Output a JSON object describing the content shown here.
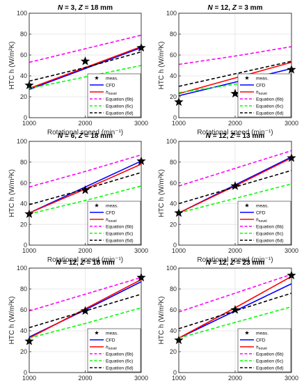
{
  "figure": {
    "colors": {
      "meas": "#000000",
      "cfd": "#0000ff",
      "hnovel": "#ff0000",
      "eq6b": "#ff00ff",
      "eq6c": "#00ff00",
      "eq6d": "#000000"
    }
  },
  "chart_data": [
    {
      "type": "line",
      "title": "N = 3, Z = 18 mm",
      "title_parts": [
        "N",
        " = 3, ",
        "Z",
        " = 18 mm"
      ],
      "xlabel": "Rotational speed (min⁻¹)",
      "ylabel": "HTC h (W/m²K)",
      "xlim": [
        1000,
        3000
      ],
      "ylim": [
        0,
        100
      ],
      "xticks": [
        "1000",
        "2000",
        "3000"
      ],
      "yticks": [
        "0",
        "20",
        "40",
        "60",
        "80",
        "100"
      ],
      "grid": true,
      "legend_position": "bottom-right",
      "legend": [
        "meas.",
        "CFD",
        "hnovel",
        "Equation (6b)",
        "Equation (6c)",
        "Equation (6d)"
      ],
      "x": [
        1000,
        2000,
        3000
      ],
      "series": [
        {
          "name": "meas.",
          "values": [
            31,
            54,
            67
          ]
        },
        {
          "name": "CFD",
          "values": [
            27,
            47,
            67
          ]
        },
        {
          "name": "hnovel",
          "values": [
            28,
            48,
            68
          ]
        },
        {
          "name": "Equation (6b)",
          "values": [
            53,
            66,
            79
          ]
        },
        {
          "name": "Equation (6c)",
          "values": [
            28,
            39,
            50
          ]
        },
        {
          "name": "Equation (6d)",
          "values": [
            35,
            48,
            63
          ]
        }
      ]
    },
    {
      "type": "line",
      "title": "N = 12, Z = 3 mm",
      "title_parts": [
        "N",
        " = 12, ",
        "Z",
        " = 3 mm"
      ],
      "xlabel": "Rotational speed (min⁻¹)",
      "ylabel": "HTC h (W/m²K)",
      "xlim": [
        1000,
        3000
      ],
      "ylim": [
        0,
        100
      ],
      "xticks": [
        "1000",
        "2000",
        "3000"
      ],
      "yticks": [
        "0",
        "20",
        "40",
        "60",
        "80",
        "100"
      ],
      "grid": true,
      "legend_position": "bottom-right",
      "legend": [
        "meas.",
        "CFD",
        "hnovel",
        "Equation (6b)",
        "Equation (6c)",
        "Equation (6d)"
      ],
      "x": [
        1000,
        2000,
        3000
      ],
      "series": [
        {
          "name": "meas.",
          "values": [
            15,
            23,
            46
          ]
        },
        {
          "name": "CFD",
          "values": [
            21,
            34,
            47
          ]
        },
        {
          "name": "hnovel",
          "values": [
            23,
            38,
            53
          ]
        },
        {
          "name": "Equation (6b)",
          "values": [
            51,
            59,
            68
          ]
        },
        {
          "name": "Equation (6c)",
          "values": [
            24,
            32,
            41
          ]
        },
        {
          "name": "Equation (6d)",
          "values": [
            30,
            42,
            54
          ]
        }
      ]
    },
    {
      "type": "line",
      "title": "N = 6, Z = 18 mm",
      "title_parts": [
        "N",
        " = 6, ",
        "Z",
        " = 18 mm"
      ],
      "xlabel": "Rotational speed (min⁻¹)",
      "ylabel": "HTC h (W/m²K)",
      "xlim": [
        1000,
        3000
      ],
      "ylim": [
        0,
        100
      ],
      "xticks": [
        "1000",
        "2000",
        "3000"
      ],
      "yticks": [
        "0",
        "20",
        "40",
        "60",
        "80",
        "100"
      ],
      "grid": true,
      "legend_position": "bottom-right",
      "legend": [
        "meas.",
        "CFD",
        "hnovel",
        "Equation (6b)",
        "Equation (6c)",
        "Equation (6d)"
      ],
      "x": [
        1000,
        2000,
        3000
      ],
      "series": [
        {
          "name": "meas.",
          "values": [
            30,
            53,
            81
          ]
        },
        {
          "name": "CFD",
          "values": [
            31,
            56,
            81
          ]
        },
        {
          "name": "hnovel",
          "values": [
            31,
            54,
            78
          ]
        },
        {
          "name": "Equation (6b)",
          "values": [
            56,
            71,
            87
          ]
        },
        {
          "name": "Equation (6c)",
          "values": [
            30,
            43,
            57
          ]
        },
        {
          "name": "Equation (6d)",
          "values": [
            39,
            54,
            70
          ]
        }
      ]
    },
    {
      "type": "line",
      "title": "N = 12, Z = 13 mm",
      "title_parts": [
        "N",
        " = 12, ",
        "Z",
        " = 13 mm"
      ],
      "xlabel": "Rotational speed (min⁻¹)",
      "ylabel": "HTC h (W/m²K)",
      "xlim": [
        1000,
        3000
      ],
      "ylim": [
        0,
        100
      ],
      "xticks": [
        "1000",
        "2000",
        "3000"
      ],
      "yticks": [
        "0",
        "20",
        "40",
        "60",
        "80",
        "100"
      ],
      "grid": true,
      "legend_position": "bottom-right",
      "legend": [
        "meas.",
        "CFD",
        "hnovel",
        "Equation (6b)",
        "Equation (6c)",
        "Equation (6d)"
      ],
      "x": [
        1000,
        2000,
        3000
      ],
      "series": [
        {
          "name": "meas.",
          "values": [
            31,
            57,
            84
          ]
        },
        {
          "name": "CFD",
          "values": [
            31,
            58,
            85
          ]
        },
        {
          "name": "hnovel",
          "values": [
            31,
            57,
            84
          ]
        },
        {
          "name": "Equation (6b)",
          "values": [
            57,
            74,
            91
          ]
        },
        {
          "name": "Equation (6c)",
          "values": [
            31,
            45,
            59
          ]
        },
        {
          "name": "Equation (6d)",
          "values": [
            40,
            56,
            72
          ]
        }
      ]
    },
    {
      "type": "line",
      "title": "N = 12, Z = 18 mm",
      "title_parts": [
        "N",
        " = 12, ",
        "Z",
        " = 18 mm"
      ],
      "xlabel": "Rotational speed (min⁻¹)",
      "ylabel": "HTC h (W/m²K)",
      "xlim": [
        1000,
        3000
      ],
      "ylim": [
        0,
        100
      ],
      "xticks": [
        "1000",
        "2000",
        "3000"
      ],
      "yticks": [
        "0",
        "20",
        "40",
        "60",
        "80",
        "100"
      ],
      "grid": true,
      "legend_position": "bottom-right",
      "legend": [
        "meas.",
        "CFD",
        "hnovel",
        "Equation (6b)",
        "Equation (6c)",
        "Equation (6d)"
      ],
      "x": [
        1000,
        2000,
        3000
      ],
      "series": [
        {
          "name": "meas.",
          "values": [
            30,
            59,
            91
          ]
        },
        {
          "name": "CFD",
          "values": [
            34,
            60,
            87
          ]
        },
        {
          "name": "hnovel",
          "values": [
            33,
            61,
            89
          ]
        },
        {
          "name": "Equation (6b)",
          "values": [
            59,
            75,
            91
          ]
        },
        {
          "name": "Equation (6c)",
          "values": [
            33,
            47,
            62
          ]
        },
        {
          "name": "Equation (6d)",
          "values": [
            43,
            59,
            75
          ]
        }
      ]
    },
    {
      "type": "line",
      "title": "N = 12, Z = 23 mm",
      "title_parts": [
        "N",
        " = 12, ",
        "Z",
        " = 23 mm"
      ],
      "xlabel": "Rotational speed (min⁻¹)",
      "ylabel": "HTC h (W/m²K)",
      "xlim": [
        1000,
        3000
      ],
      "ylim": [
        0,
        100
      ],
      "xticks": [
        "1000",
        "2000",
        "3000"
      ],
      "yticks": [
        "0",
        "20",
        "40",
        "60",
        "80",
        "100"
      ],
      "grid": true,
      "legend_position": "bottom-right",
      "legend": [
        "meas.",
        "CFD",
        "hnovel",
        "Equation (6b)",
        "Equation (6c)",
        "Equation (6d)"
      ],
      "x": [
        1000,
        2000,
        3000
      ],
      "series": [
        {
          "name": "meas.",
          "values": [
            31,
            60,
            93
          ]
        },
        {
          "name": "CFD",
          "values": [
            33,
            59,
            85
          ]
        },
        {
          "name": "hnovel",
          "values": [
            33,
            62,
            92
          ]
        },
        {
          "name": "Equation (6b)",
          "values": [
            58,
            76,
            94
          ]
        },
        {
          "name": "Equation (6c)",
          "values": [
            33,
            48,
            63
          ]
        },
        {
          "name": "Equation (6d)",
          "values": [
            42,
            59,
            76
          ]
        }
      ]
    }
  ]
}
